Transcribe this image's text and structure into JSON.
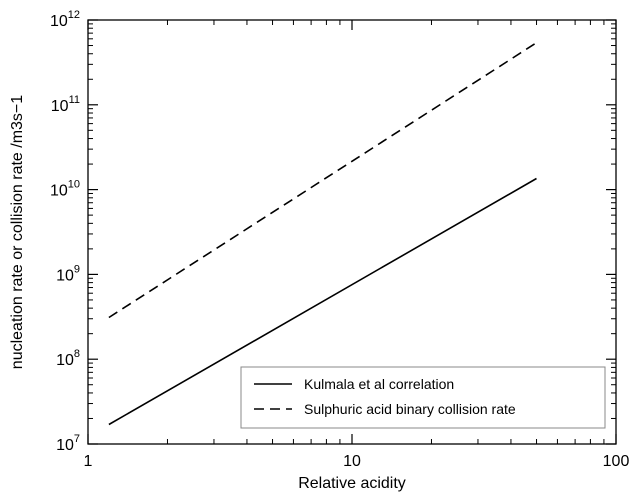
{
  "chart_data": {
    "type": "line",
    "title": "",
    "xlabel": "Relative acidity",
    "ylabel": "nucleation rate or collision rate /m3s−1",
    "xscale": "log",
    "yscale": "log",
    "xlim": [
      1,
      100
    ],
    "ylim": [
      10000000,
      1000000000000
    ],
    "grid": false,
    "legend_position": "bottom-right",
    "x_ticks": [
      {
        "value": 1,
        "label": "1"
      },
      {
        "value": 10,
        "label": "10"
      },
      {
        "value": 100,
        "label": "100"
      }
    ],
    "y_ticks": [
      {
        "value": 10000000,
        "base": "10",
        "exp": "7"
      },
      {
        "value": 100000000,
        "base": "10",
        "exp": "8"
      },
      {
        "value": 1000000000,
        "base": "10",
        "exp": "9"
      },
      {
        "value": 10000000000,
        "base": "10",
        "exp": "10"
      },
      {
        "value": 100000000000,
        "base": "10",
        "exp": "11"
      },
      {
        "value": 1000000000000,
        "base": "10",
        "exp": "12"
      }
    ],
    "series": [
      {
        "name": "Kulmala et al correlation",
        "style": "solid",
        "color": "#000000",
        "points": [
          [
            1.2,
            17000000
          ],
          [
            50,
            13500000000
          ]
        ]
      },
      {
        "name": "Sulphuric acid binary collision rate",
        "style": "dashed",
        "color": "#000000",
        "points": [
          [
            1.2,
            310000000
          ],
          [
            50,
            540000000000
          ]
        ]
      }
    ]
  }
}
